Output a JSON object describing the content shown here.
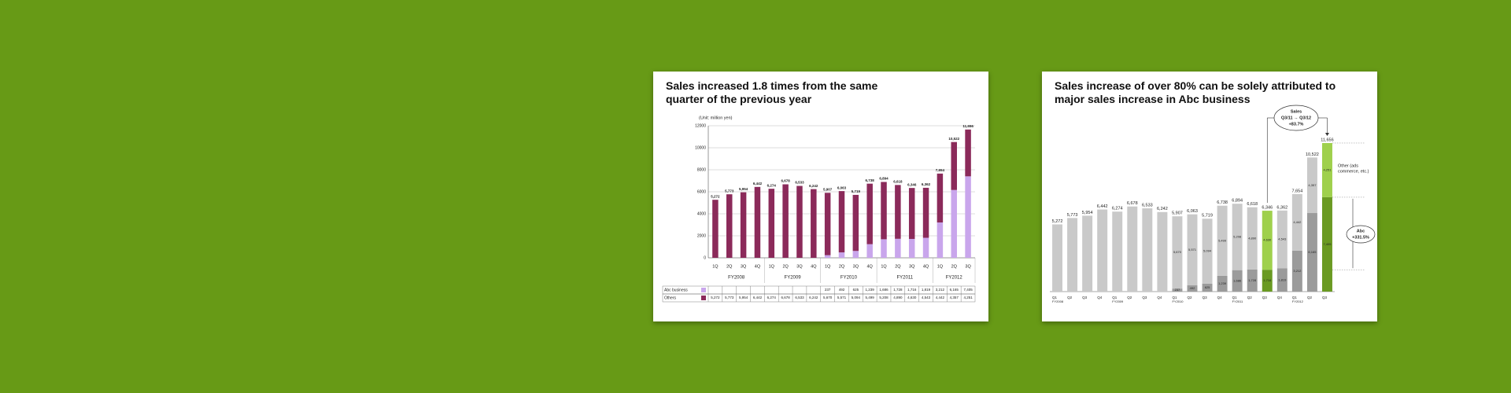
{
  "chart_data": [
    {
      "type": "bar",
      "stacked": true,
      "grid": true,
      "table": true,
      "title": "Sales increased 1.8 times from the same quarter of the previous year",
      "y_label": "(Unit: million yen)",
      "categories": [
        "1Q",
        "2Q",
        "3Q",
        "4Q",
        "1Q",
        "2Q",
        "3Q",
        "4Q",
        "1Q",
        "2Q",
        "3Q",
        "4Q",
        "1Q",
        "2Q",
        "3Q",
        "4Q",
        "1Q",
        "2Q",
        "3Q"
      ],
      "group_labels": [
        "FY2008",
        null,
        null,
        null,
        "FY2009",
        null,
        null,
        null,
        "FY2010",
        null,
        null,
        null,
        "FY2011",
        null,
        null,
        null,
        "FY2012",
        null,
        null
      ],
      "series": [
        {
          "name": "Abc business",
          "color": "#c9a6ec",
          "values": [
            null,
            null,
            null,
            null,
            null,
            null,
            null,
            null,
            237,
            492,
            625,
            1239,
            1686,
            1728,
            1716,
            1819,
            3212,
            6165,
            7405
          ],
          "value_labels": [
            null,
            null,
            null,
            null,
            null,
            null,
            null,
            null,
            "237",
            "492",
            "625",
            "1,239",
            "1,686",
            "1,728",
            "1,716",
            "1,819",
            "3,212",
            "6,165",
            "7,405"
          ]
        },
        {
          "name": "Others",
          "color": "#8b2a5a",
          "values": [
            5272,
            5773,
            5954,
            6442,
            6274,
            6678,
            6533,
            6242,
            5670,
            5571,
            5094,
            5499,
            5208,
            4890,
            4630,
            4543,
            4442,
            4357,
            4251
          ],
          "value_labels": [
            "5,272",
            "5,773",
            "5,954",
            "6,442",
            "6,274",
            "6,678",
            "6,533",
            "6,242",
            "5,670",
            "5,571",
            "5,094",
            "5,499",
            "5,208",
            "4,890",
            "4,630",
            "4,543",
            "4,442",
            "4,357",
            "4,251"
          ]
        }
      ],
      "totals": [
        5272,
        5773,
        5954,
        6442,
        6274,
        6678,
        6533,
        6242,
        5907,
        6063,
        5719,
        6738,
        6894,
        6618,
        6346,
        6362,
        7654,
        10522,
        11656
      ],
      "total_labels": [
        "5,272",
        "5,773",
        "5,954",
        "6,442",
        "6,274",
        "6,678",
        "6,533",
        "6,242",
        "5,907",
        "6,063",
        "5,719",
        "6,738",
        "6,894",
        "6,618",
        "6,346",
        "6,362",
        "7,654",
        "10,522",
        "11,656"
      ],
      "ylim": [
        0,
        12000
      ],
      "yticks": [
        0,
        2000,
        4000,
        6000,
        8000,
        10000,
        12000
      ]
    },
    {
      "type": "bar",
      "stacked": true,
      "grid": false,
      "segment_labels": true,
      "title": "Sales increase of over 80% can be solely attributed to major sales increase in Abc business",
      "categories": [
        "Q1",
        "Q2",
        "Q3",
        "Q4",
        "Q1",
        "Q2",
        "Q3",
        "Q4",
        "Q1",
        "Q2",
        "Q3",
        "Q4",
        "Q1",
        "Q2",
        "Q3",
        "Q4",
        "Q1",
        "Q2",
        "Q3"
      ],
      "group_labels": [
        "FY2008",
        null,
        null,
        null,
        "FY2009",
        null,
        null,
        null,
        "FY2010",
        null,
        null,
        null,
        "FY2011",
        null,
        null,
        null,
        "FY2012",
        null,
        null
      ],
      "highlight": [
        14,
        18
      ],
      "series": [
        {
          "name": "Abc",
          "color": "#9b9b9b",
          "highlight_color": "#6a9a22",
          "values": [
            null,
            null,
            null,
            null,
            null,
            null,
            null,
            null,
            237,
            492,
            625,
            1239,
            1686,
            1728,
            1716,
            1819,
            3212,
            6165,
            7405
          ],
          "value_labels": [
            null,
            null,
            null,
            null,
            null,
            null,
            null,
            null,
            "237",
            "492",
            "625",
            "1,239",
            "1,686",
            "1,728",
            "1,716",
            "1,819",
            "3,212",
            "6,165",
            "7,405"
          ]
        },
        {
          "name": "Other (ads commerce, etc.)",
          "color": "#c9c9c9",
          "highlight_color": "#9fd04c",
          "values": [
            5272,
            5773,
            5954,
            6442,
            6274,
            6678,
            6533,
            6242,
            5670,
            5571,
            5094,
            5499,
            5208,
            4890,
            4630,
            4543,
            4442,
            4357,
            4251
          ],
          "value_labels": [
            null,
            null,
            null,
            null,
            null,
            null,
            null,
            null,
            "5,670",
            "5,571",
            "5,094",
            "5,499",
            "5,208",
            "4,890",
            "4,630",
            "4,543",
            "4,442",
            "4,357",
            "4,251"
          ]
        }
      ],
      "totals": [
        5272,
        5773,
        5954,
        6442,
        6274,
        6678,
        6533,
        6242,
        5907,
        6063,
        5719,
        6738,
        6894,
        6618,
        6346,
        6362,
        7654,
        10522,
        11656
      ],
      "total_labels": [
        "5,272",
        "5,773",
        "5,954",
        "6,442",
        "6,274",
        "6,678",
        "6,533",
        "6,242",
        "5,907",
        "6,063",
        "5,719",
        "6,738",
        "6,894",
        "6,618",
        "6,346",
        "6,362",
        "7,654",
        "10,522",
        "11,656"
      ],
      "ylim": [
        0,
        12000
      ],
      "annotations": {
        "sales": [
          "Sales",
          "Q3/11 → Q3/12",
          "+83.7%"
        ],
        "other": [
          "Other (ads",
          "commerce, etc.)"
        ],
        "abc": [
          "Abc",
          "+331.5%"
        ]
      }
    }
  ]
}
